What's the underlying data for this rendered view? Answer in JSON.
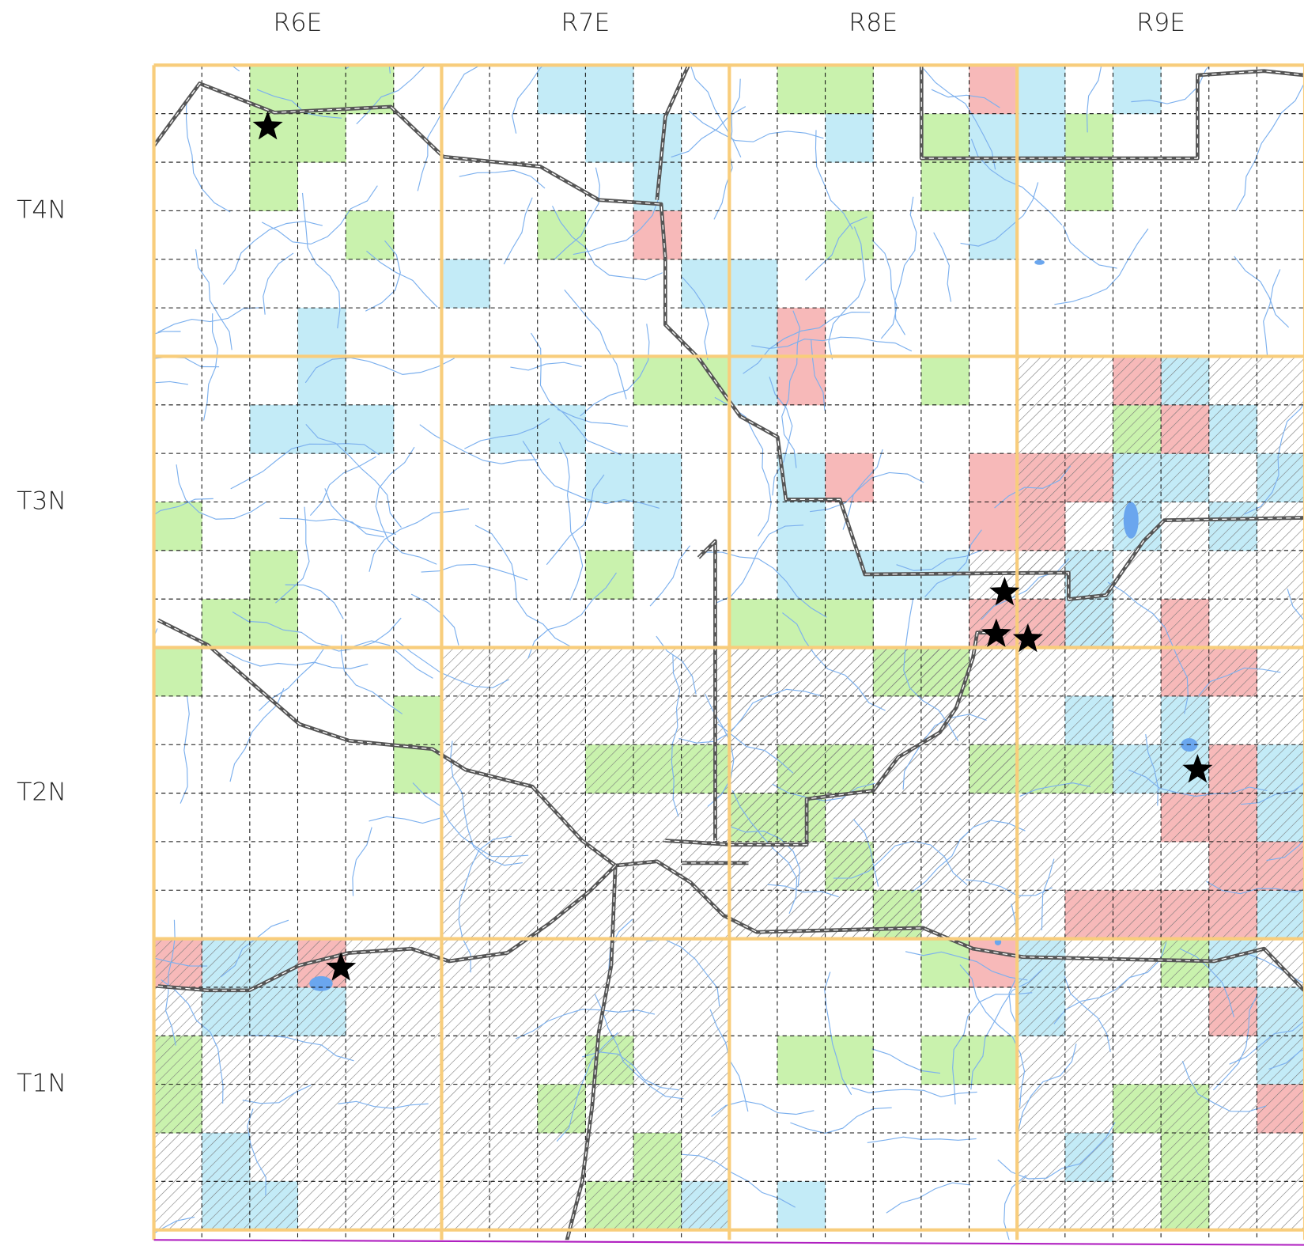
{
  "range_labels": [
    "R6E",
    "R7E",
    "R8E",
    "R9E"
  ],
  "township_labels": [
    "T4N",
    "T3N",
    "T2N",
    "T1N"
  ]
}
